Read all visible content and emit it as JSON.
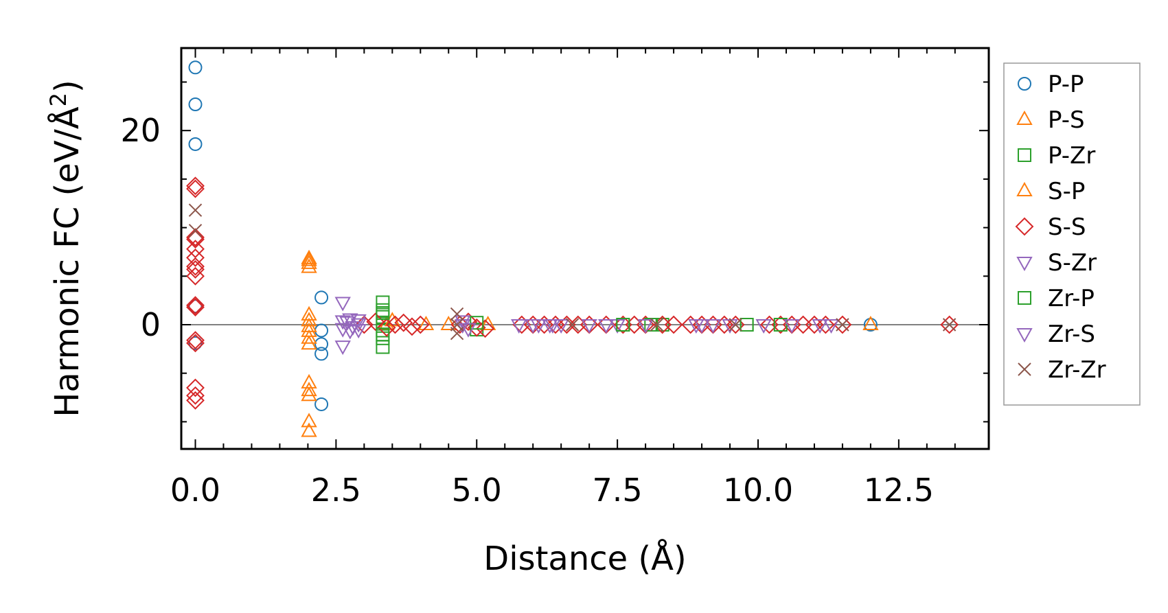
{
  "chart_data": {
    "type": "scatter",
    "title": "",
    "xlabel": "Distance (Å)",
    "ylabel_main": "Harmonic FC (eV/Å",
    "ylabel_sup": "2",
    "ylabel_end": ")",
    "xlim": [
      -0.25,
      14.1
    ],
    "ylim": [
      -12.8,
      28.5
    ],
    "xticks": [
      0.0,
      2.5,
      5.0,
      7.5,
      10.0,
      12.5
    ],
    "xtick_labels": [
      "0.0",
      "2.5",
      "5.0",
      "7.5",
      "10.0",
      "12.5"
    ],
    "yticks": [
      0,
      20
    ],
    "ytick_labels": [
      "0",
      "20"
    ],
    "legend_position": "outside-right",
    "zero_line": true,
    "series": [
      {
        "name": "P-P",
        "marker": "circle",
        "color": "#1f77b4",
        "x": [
          0,
          0,
          0,
          0,
          0,
          2.24,
          2.24,
          2.24,
          2.24,
          2.24,
          12.0
        ],
        "y": [
          26.5,
          22.7,
          18.6,
          1.9,
          -1.9,
          2.8,
          -0.6,
          -2.0,
          -3.0,
          -8.2,
          0
        ]
      },
      {
        "name": "P-S",
        "marker": "triangle-up",
        "color": "#ff7f0e",
        "x": [
          2.02,
          2.02,
          2.02,
          2.02,
          2.02,
          2.02,
          2.02,
          2.02,
          2.02,
          2.02,
          2.02,
          2.02,
          3.4,
          4.5,
          12.0
        ],
        "y": [
          6.8,
          6.3,
          5.9,
          1.0,
          0.4,
          -0.2,
          -0.7,
          -1.4,
          -2.0,
          -6.0,
          -6.8,
          -7.3,
          0,
          0,
          0
        ]
      },
      {
        "name": "P-Zr",
        "marker": "square",
        "color": "#2ca02c",
        "x": [
          3.33,
          3.33,
          3.33,
          3.33,
          3.33,
          3.33,
          3.33,
          5.0,
          7.6,
          8.3,
          9.8
        ],
        "y": [
          2.3,
          1.5,
          0.8,
          0.1,
          -0.6,
          -1.4,
          -2.3,
          -0.5,
          0,
          0,
          0
        ]
      },
      {
        "name": "S-P",
        "marker": "triangle-up",
        "color": "#ff7f0e",
        "x": [
          2.02,
          2.02,
          2.02,
          3.5,
          4.1,
          5.2
        ],
        "y": [
          6.6,
          -10.0,
          -11.0,
          0.4,
          0,
          0
        ]
      },
      {
        "name": "S-S",
        "marker": "diamond",
        "color": "#d62728",
        "x": [
          0,
          0,
          0,
          0,
          0,
          0,
          0,
          0,
          0,
          0,
          0,
          0,
          0,
          0,
          0,
          0,
          3.0,
          3.2,
          3.4,
          3.55,
          3.7,
          3.85,
          4.0,
          4.7,
          4.85,
          5.0,
          5.15,
          5.8,
          6.0,
          6.2,
          6.4,
          6.6,
          6.8,
          7.0,
          7.3,
          7.6,
          7.8,
          8.0,
          8.3,
          8.5,
          8.8,
          9.0,
          9.2,
          9.4,
          9.6,
          10.2,
          10.4,
          10.6,
          10.8,
          11.0,
          11.2,
          11.5,
          13.4
        ],
        "y": [
          14.3,
          14.0,
          9.0,
          8.8,
          7.8,
          6.9,
          6.0,
          5.7,
          5.0,
          2.0,
          1.8,
          -1.6,
          -1.9,
          -6.5,
          -7.3,
          -7.8,
          0,
          0.3,
          -0.3,
          0,
          0.2,
          -0.2,
          0,
          0,
          0.3,
          -0.3,
          -0.4,
          0,
          0,
          0,
          0,
          0,
          0,
          0,
          0,
          0,
          0,
          0,
          0,
          0,
          0,
          0,
          0,
          0,
          0,
          0,
          0,
          0,
          0,
          0,
          0,
          0,
          0
        ]
      },
      {
        "name": "S-Zr",
        "marker": "triangle-down",
        "color": "#9467bd",
        "x": [
          2.62,
          2.62,
          2.62,
          2.62,
          2.75,
          2.75,
          2.9,
          2.9,
          4.75,
          5.75,
          6.0,
          6.3,
          7.0,
          7.5,
          8.9,
          9.2,
          10.1,
          11.1
        ],
        "y": [
          2.3,
          0.4,
          -0.4,
          -2.2,
          0.6,
          -0.6,
          0.5,
          -0.5,
          0,
          0,
          0,
          0,
          0,
          0,
          0,
          0,
          0,
          0
        ]
      },
      {
        "name": "Zr-P",
        "marker": "square",
        "color": "#2ca02c",
        "x": [
          3.33,
          3.33,
          5.0,
          7.6,
          8.1,
          9.8,
          10.4
        ],
        "y": [
          1.2,
          -1.0,
          0.2,
          0,
          0,
          0,
          0
        ]
      },
      {
        "name": "Zr-S",
        "marker": "triangle-down",
        "color": "#9467bd",
        "x": [
          2.7,
          2.8,
          2.9,
          4.75,
          4.85,
          6.1,
          6.35,
          6.5,
          7.3,
          8.0,
          9.0,
          9.5,
          10.6,
          11.3
        ],
        "y": [
          0.3,
          -0.2,
          0.1,
          0.4,
          -0.4,
          0,
          0,
          0,
          0,
          0,
          0,
          0,
          0,
          0
        ]
      },
      {
        "name": "Zr-Zr",
        "marker": "x",
        "color": "#8c564b",
        "x": [
          0,
          0,
          4.65,
          4.65,
          4.65,
          6.7,
          8.2,
          9.6,
          11.5,
          13.4
        ],
        "y": [
          11.8,
          9.7,
          1.1,
          0,
          -0.9,
          0,
          0,
          0,
          0,
          0
        ]
      }
    ]
  }
}
